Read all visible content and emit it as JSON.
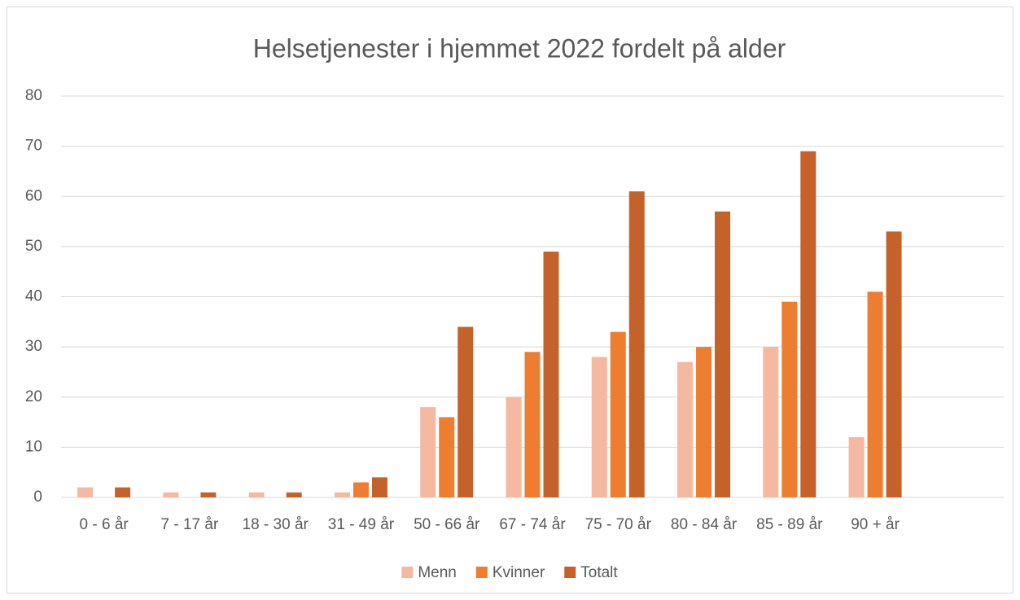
{
  "chart_data": {
    "type": "bar",
    "title": "Helsetjenester i hjemmet 2022 fordelt på alder",
    "categories": [
      "0 - 6 år",
      "7 - 17 år",
      "18 - 30 år",
      "31 - 49 år",
      "50 - 66 år",
      "67 - 74 år",
      "75 - 70 år",
      "80 - 84 år",
      "85 - 89 år",
      "90 + år",
      null
    ],
    "series": [
      {
        "name": "Menn",
        "color": "#f4b9a0",
        "values": [
          2,
          1,
          1,
          1,
          18,
          20,
          28,
          27,
          30,
          12,
          null
        ]
      },
      {
        "name": "Kvinner",
        "color": "#ed7d31",
        "values": [
          0,
          0,
          0,
          3,
          16,
          29,
          33,
          30,
          39,
          41,
          null
        ]
      },
      {
        "name": "Totalt",
        "color": "#c5622a",
        "values": [
          2,
          1,
          1,
          4,
          34,
          49,
          61,
          57,
          69,
          53,
          null
        ]
      }
    ],
    "ylim": [
      0,
      80
    ],
    "yticks": [
      0,
      10,
      20,
      30,
      40,
      50,
      60,
      70,
      80
    ],
    "grid": true,
    "legend": "bottom"
  }
}
